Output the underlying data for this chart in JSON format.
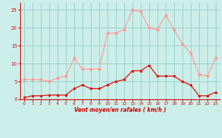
{
  "x": [
    0,
    1,
    2,
    3,
    4,
    5,
    6,
    7,
    8,
    9,
    10,
    11,
    12,
    13,
    14,
    15,
    16,
    17,
    18,
    19,
    20,
    21,
    22,
    23
  ],
  "vent_moyen": [
    0.5,
    1.0,
    1.0,
    1.2,
    1.2,
    1.2,
    3.0,
    4.0,
    3.0,
    3.0,
    4.0,
    5.0,
    5.5,
    8.0,
    8.0,
    9.5,
    6.5,
    6.5,
    6.5,
    5.0,
    4.0,
    1.0,
    1.0,
    2.0
  ],
  "rafales": [
    5.5,
    5.5,
    5.5,
    5.0,
    6.0,
    6.5,
    11.5,
    8.5,
    8.5,
    8.5,
    18.5,
    18.5,
    19.5,
    25.0,
    24.5,
    20.0,
    19.5,
    23.5,
    19.5,
    15.5,
    13.0,
    7.0,
    6.5,
    11.5
  ],
  "bg_color": "#cceee8",
  "grid_color": "#99cccc",
  "line_color_moyen": "#dd0000",
  "line_color_rafales": "#ff9999",
  "xlabel": "Vent moyen/en rafales ( km/h )",
  "ylim": [
    0,
    27
  ],
  "xlim": [
    -0.5,
    23.5
  ],
  "yticks": [
    0,
    5,
    10,
    15,
    20,
    25
  ],
  "xticks": [
    0,
    1,
    2,
    3,
    4,
    5,
    6,
    7,
    8,
    9,
    10,
    11,
    12,
    13,
    14,
    15,
    16,
    17,
    18,
    19,
    20,
    21,
    22,
    23
  ]
}
